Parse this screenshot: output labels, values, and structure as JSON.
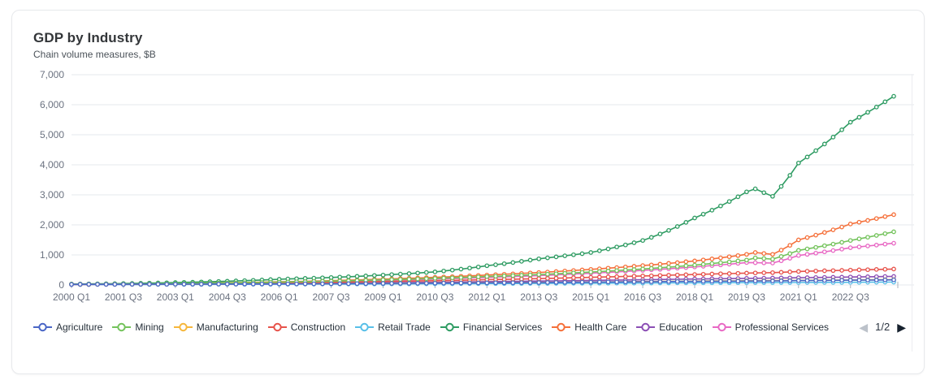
{
  "card": {
    "title": "GDP by Industry",
    "subtitle": "Chain volume measures, $B"
  },
  "pagination": {
    "label": "1/2",
    "prev_icon": "◀",
    "next_icon": "▶",
    "prev_enabled": false,
    "next_enabled": true
  },
  "chart_data": {
    "type": "line",
    "title": "GDP by Industry",
    "subtitle": "Chain volume measures, $B",
    "xlabel": "",
    "ylabel": "Chain volume measures, $B",
    "ylim": [
      0,
      7000
    ],
    "ytick_step": 1000,
    "ytick_labels": [
      "0",
      "1,000",
      "2,000",
      "3,000",
      "4,000",
      "5,000",
      "6,000",
      "7,000"
    ],
    "x_start": "2000 Q1",
    "x_end": "2023 Q4",
    "x_frequency": "quarterly",
    "xtick_labels": [
      "2000 Q1",
      "2001 Q3",
      "2003 Q1",
      "2004 Q3",
      "2006 Q1",
      "2007 Q3",
      "2009 Q1",
      "2010 Q3",
      "2012 Q1",
      "2013 Q3",
      "2015 Q1",
      "2016 Q3",
      "2018 Q1",
      "2019 Q3",
      "2021 Q1",
      "2022 Q3"
    ],
    "grid": "horizontal",
    "legend_position": "bottom",
    "marker": "open-circle",
    "series": [
      {
        "name": "Agriculture",
        "color": "#4a66c6",
        "anchors": [
          [
            "2000 Q1",
            20
          ],
          [
            "2003 Q1",
            26
          ],
          [
            "2006 Q1",
            34
          ],
          [
            "2009 Q1",
            50
          ],
          [
            "2012 Q1",
            70
          ],
          [
            "2015 Q1",
            95
          ],
          [
            "2018 Q1",
            120
          ],
          [
            "2020 Q2",
            135
          ],
          [
            "2021 Q1",
            145
          ],
          [
            "2023 Q4",
            170
          ]
        ]
      },
      {
        "name": "Mining",
        "color": "#74c35c",
        "anchors": [
          [
            "2000 Q1",
            24
          ],
          [
            "2003 Q1",
            48
          ],
          [
            "2006 Q1",
            95
          ],
          [
            "2009 Q1",
            170
          ],
          [
            "2012 Q1",
            280
          ],
          [
            "2015 Q1",
            430
          ],
          [
            "2018 Q1",
            660
          ],
          [
            "2019 Q3",
            830
          ],
          [
            "2019 Q4",
            900
          ],
          [
            "2020 Q2",
            860
          ],
          [
            "2021 Q1",
            1150
          ],
          [
            "2022 Q3",
            1480
          ],
          [
            "2023 Q4",
            1770
          ]
        ]
      },
      {
        "name": "Manufacturing",
        "color": "#f6b73c",
        "anchors": [
          [
            "2000 Q1",
            21
          ],
          [
            "2006 Q1",
            38
          ],
          [
            "2012 Q1",
            76
          ],
          [
            "2018 Q1",
            128
          ],
          [
            "2023 Q4",
            178
          ]
        ]
      },
      {
        "name": "Construction",
        "color": "#e7534b",
        "anchors": [
          [
            "2000 Q1",
            18
          ],
          [
            "2003 Q1",
            36
          ],
          [
            "2006 Q1",
            68
          ],
          [
            "2009 Q1",
            115
          ],
          [
            "2012 Q1",
            175
          ],
          [
            "2015 Q1",
            255
          ],
          [
            "2018 Q1",
            350
          ],
          [
            "2019 Q3",
            395
          ],
          [
            "2020 Q2",
            410
          ],
          [
            "2021 Q1",
            450
          ],
          [
            "2022 Q3",
            495
          ],
          [
            "2023 Q4",
            530
          ]
        ]
      },
      {
        "name": "Retail Trade",
        "color": "#58bfe8",
        "anchors": [
          [
            "2000 Q1",
            14
          ],
          [
            "2003 Q1",
            18
          ],
          [
            "2006 Q1",
            25
          ],
          [
            "2009 Q1",
            34
          ],
          [
            "2012 Q1",
            45
          ],
          [
            "2015 Q1",
            58
          ],
          [
            "2018 Q1",
            72
          ],
          [
            "2021 Q1",
            82
          ],
          [
            "2023 Q4",
            95
          ]
        ]
      },
      {
        "name": "Financial Services",
        "color": "#2f9c63",
        "anchors": [
          [
            "2000 Q1",
            30
          ],
          [
            "2001 Q3",
            48
          ],
          [
            "2003 Q1",
            80
          ],
          [
            "2004 Q3",
            125
          ],
          [
            "2006 Q1",
            190
          ],
          [
            "2007 Q3",
            250
          ],
          [
            "2009 Q1",
            330
          ],
          [
            "2010 Q3",
            435
          ],
          [
            "2012 Q1",
            640
          ],
          [
            "2013 Q3",
            870
          ],
          [
            "2015 Q1",
            1080
          ],
          [
            "2016 Q3",
            1480
          ],
          [
            "2018 Q1",
            2230
          ],
          [
            "2019 Q3",
            3100
          ],
          [
            "2019 Q4",
            3200
          ],
          [
            "2020 Q2",
            2950
          ],
          [
            "2021 Q1",
            4060
          ],
          [
            "2022 Q3",
            5420
          ],
          [
            "2023 Q4",
            6280
          ]
        ]
      },
      {
        "name": "Health Care",
        "color": "#f5703a",
        "anchors": [
          [
            "2000 Q1",
            26
          ],
          [
            "2003 Q1",
            55
          ],
          [
            "2006 Q1",
            105
          ],
          [
            "2009 Q1",
            195
          ],
          [
            "2012 Q1",
            330
          ],
          [
            "2015 Q1",
            520
          ],
          [
            "2018 Q1",
            800
          ],
          [
            "2019 Q3",
            1020
          ],
          [
            "2019 Q4",
            1080
          ],
          [
            "2020 Q2",
            1020
          ],
          [
            "2021 Q1",
            1500
          ],
          [
            "2022 Q3",
            2030
          ],
          [
            "2023 Q4",
            2340
          ]
        ]
      },
      {
        "name": "Education",
        "color": "#8c4fb5",
        "anchors": [
          [
            "2000 Q1",
            13
          ],
          [
            "2003 Q1",
            24
          ],
          [
            "2006 Q1",
            44
          ],
          [
            "2009 Q1",
            73
          ],
          [
            "2012 Q1",
            110
          ],
          [
            "2015 Q1",
            152
          ],
          [
            "2018 Q1",
            198
          ],
          [
            "2021 Q1",
            240
          ],
          [
            "2023 Q4",
            285
          ]
        ]
      },
      {
        "name": "Professional Services",
        "color": "#e868c4",
        "anchors": [
          [
            "2000 Q1",
            22
          ],
          [
            "2003 Q1",
            44
          ],
          [
            "2006 Q1",
            84
          ],
          [
            "2009 Q1",
            150
          ],
          [
            "2012 Q1",
            248
          ],
          [
            "2015 Q1",
            390
          ],
          [
            "2018 Q1",
            600
          ],
          [
            "2019 Q3",
            745
          ],
          [
            "2020 Q2",
            730
          ],
          [
            "2021 Q1",
            980
          ],
          [
            "2022 Q3",
            1240
          ],
          [
            "2023 Q4",
            1390
          ]
        ]
      }
    ],
    "colors": {
      "grid": "#e4e8ee",
      "axis_text": "#6b7280",
      "tick": "#aab2bc"
    }
  }
}
